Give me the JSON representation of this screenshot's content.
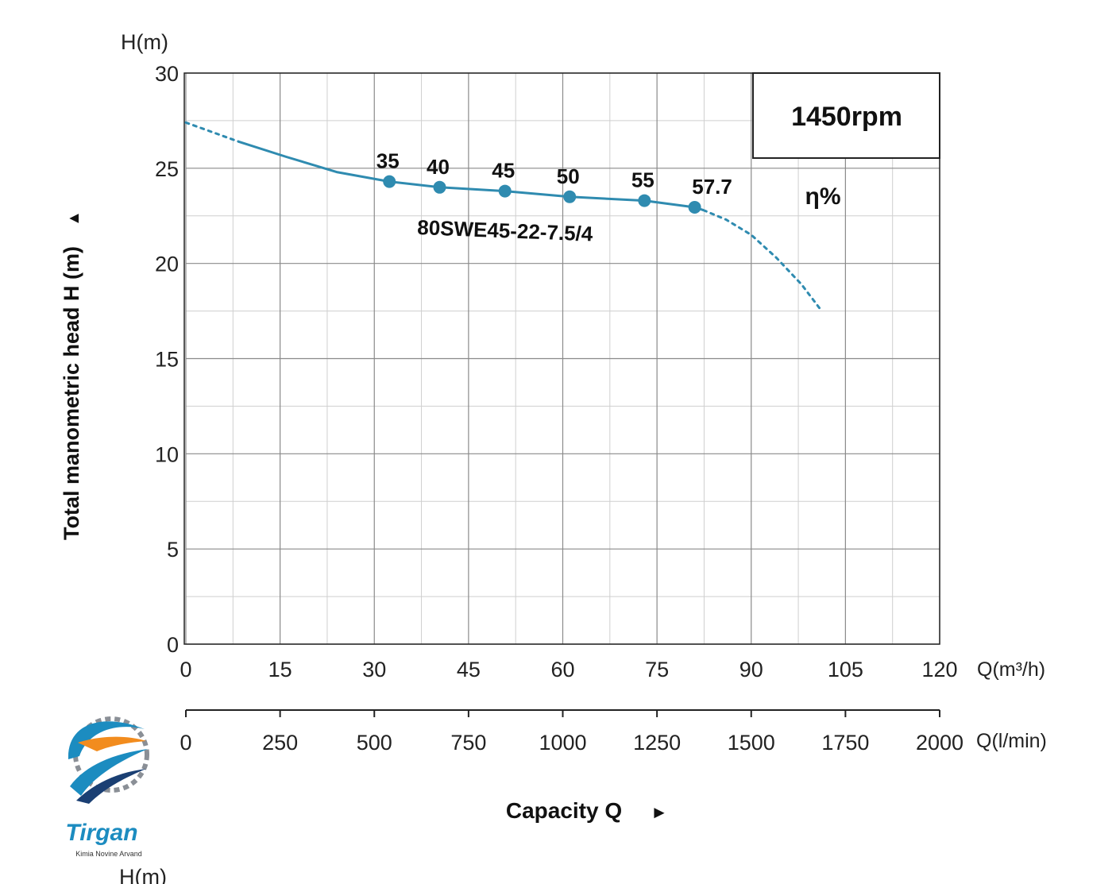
{
  "chart_data": {
    "type": "line",
    "y_unit_top": "H(m)",
    "ylabel": "Total manometric head H (m)",
    "ylabel_arrow": "▲",
    "ylim": [
      0,
      30
    ],
    "yticks": [
      "0",
      "5",
      "10",
      "15",
      "20",
      "25",
      "30"
    ],
    "x_unit": "Q(m³/h)",
    "xlim": [
      0,
      120
    ],
    "xticks": [
      "0",
      "15",
      "30",
      "45",
      "60",
      "75",
      "90",
      "105",
      "120"
    ],
    "x2_unit": "Q(l/min)",
    "x2lim": [
      0,
      2000
    ],
    "x2ticks": [
      "0",
      "250",
      "500",
      "750",
      "1000",
      "1250",
      "1500",
      "1750",
      "2000"
    ],
    "xlabel": "Capacity Q",
    "xlabel_arrow": "►",
    "speed_label": "1450rpm",
    "efficiency_label": "η%",
    "grid": true,
    "series": [
      {
        "name": "80SWE45-22-7.5/4",
        "color": "#2f8bb0",
        "dashed_start": [
          [
            0,
            27.4
          ],
          [
            8.4,
            26.4
          ]
        ],
        "solid": [
          [
            8.4,
            26.4
          ],
          [
            16,
            25.6
          ],
          [
            24,
            24.8
          ],
          [
            32.4,
            24.3
          ],
          [
            40.4,
            24.0
          ],
          [
            50.8,
            23.8
          ],
          [
            61.1,
            23.5
          ],
          [
            73,
            23.3
          ],
          [
            81,
            22.95
          ],
          [
            82.4,
            22.8
          ]
        ],
        "dashed_end": [
          [
            82.4,
            22.8
          ],
          [
            86,
            22.3
          ],
          [
            90,
            21.5
          ],
          [
            94,
            20.3
          ],
          [
            98,
            18.9
          ],
          [
            101,
            17.6
          ]
        ],
        "points": [
          {
            "x": 32.4,
            "y": 24.3,
            "label": "35"
          },
          {
            "x": 40.4,
            "y": 24.0,
            "label": "40"
          },
          {
            "x": 50.8,
            "y": 23.8,
            "label": "45"
          },
          {
            "x": 61.1,
            "y": 23.5,
            "label": "50"
          },
          {
            "x": 73.0,
            "y": 23.3,
            "label": "55"
          },
          {
            "x": 81.0,
            "y": 22.95,
            "label": "57.7"
          }
        ]
      }
    ]
  },
  "logo": {
    "name": "Tirgan",
    "tagline": "Kimia Novine Arvand",
    "color_primary": "#1c8cc0",
    "color_secondary": "#f28c1e",
    "color_gear": "#8a8f96"
  },
  "cropped_next_chart_label": "H(m)"
}
